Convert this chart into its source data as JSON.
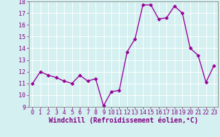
{
  "x": [
    0,
    1,
    2,
    3,
    4,
    5,
    6,
    7,
    8,
    9,
    10,
    11,
    12,
    13,
    14,
    15,
    16,
    17,
    18,
    19,
    20,
    21,
    22,
    23
  ],
  "y": [
    11.0,
    12.0,
    11.7,
    11.5,
    11.2,
    11.0,
    11.7,
    11.2,
    11.4,
    9.1,
    10.3,
    10.4,
    13.7,
    14.8,
    17.7,
    17.7,
    16.5,
    16.6,
    17.6,
    17.0,
    14.0,
    13.4,
    11.1,
    12.5
  ],
  "line_color": "#990099",
  "marker": "D",
  "marker_size": 2.5,
  "bg_color": "#d4f0f0",
  "grid_color": "#b0d8d8",
  "xlabel": "Windchill (Refroidissement éolien,°C)",
  "ylabel": "",
  "ylim": [
    9,
    18
  ],
  "xlim": [
    -0.5,
    23.5
  ],
  "yticks": [
    9,
    10,
    11,
    12,
    13,
    14,
    15,
    16,
    17,
    18
  ],
  "xticks": [
    0,
    1,
    2,
    3,
    4,
    5,
    6,
    7,
    8,
    9,
    10,
    11,
    12,
    13,
    14,
    15,
    16,
    17,
    18,
    19,
    20,
    21,
    22,
    23
  ],
  "tick_label_fontsize": 6,
  "xlabel_fontsize": 7,
  "line_width": 1.0,
  "axes_color": "#800080",
  "spine_color": "#808080"
}
